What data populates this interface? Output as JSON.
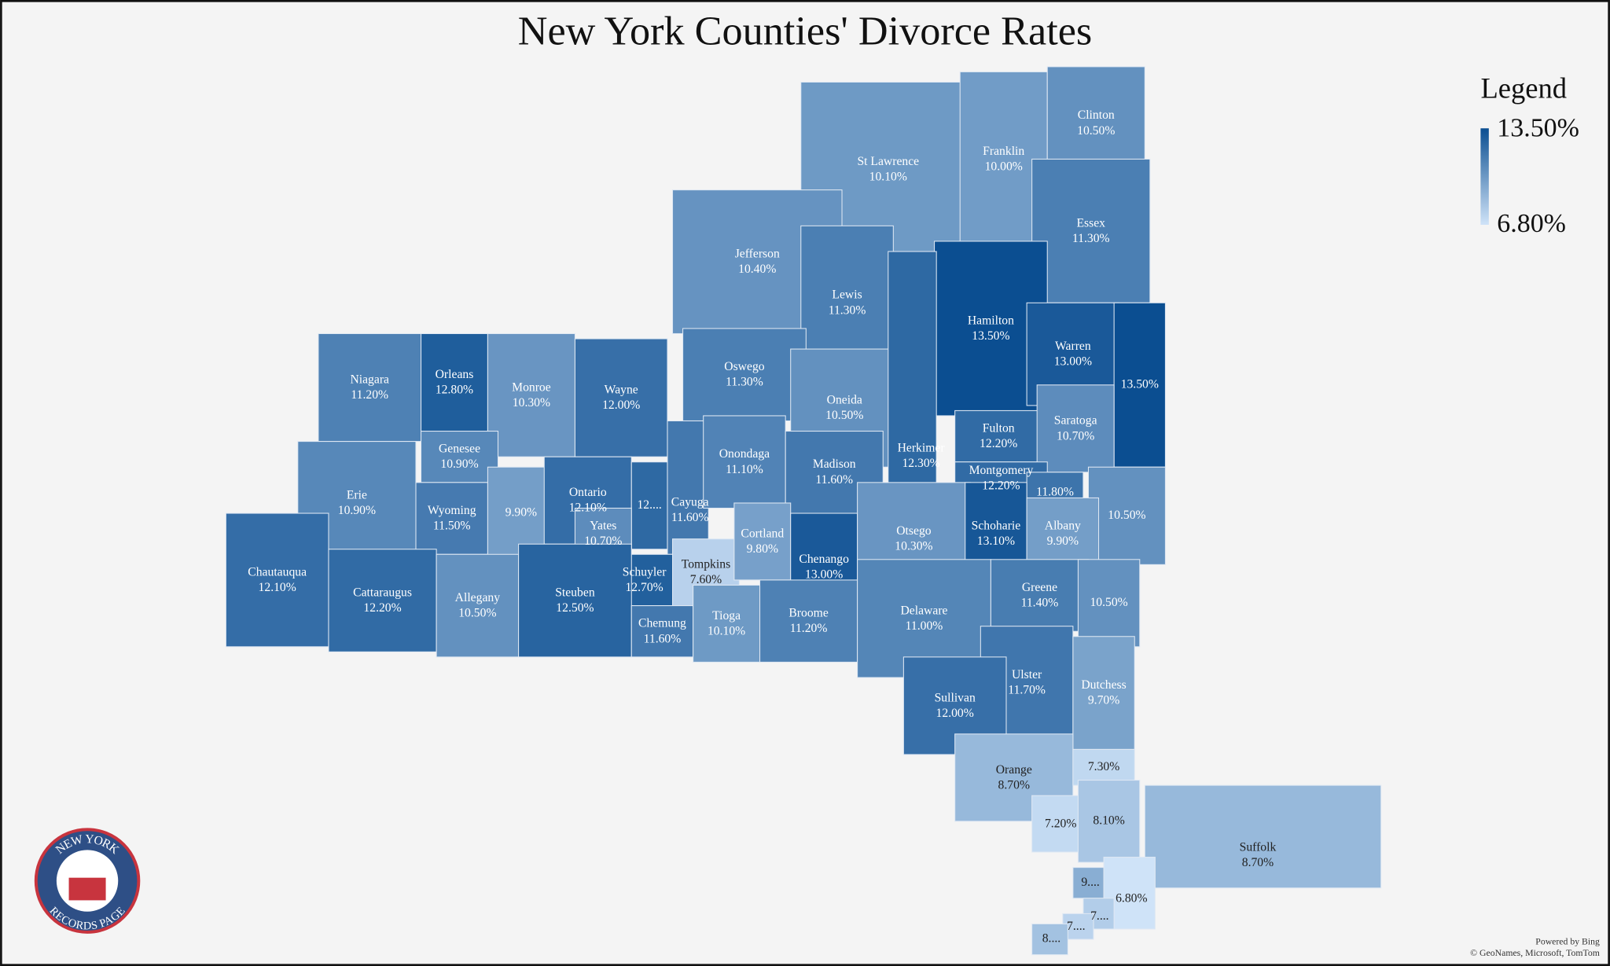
{
  "title": "New York Counties' Divorce Rates",
  "legend": {
    "title": "Legend",
    "max": {
      "value": 13.5,
      "label": "13.50%"
    },
    "min": {
      "value": 6.8,
      "label": "6.80%"
    },
    "colors": [
      "#cfe3f8",
      "#0b4e91"
    ]
  },
  "counties": [
    {
      "name": "St Lawrence",
      "value": 10.1,
      "value_label": "10.10%"
    },
    {
      "name": "Franklin",
      "value": 10.0,
      "value_label": "10.00%"
    },
    {
      "name": "Clinton",
      "value": 10.5,
      "value_label": "10.50%"
    },
    {
      "name": "Essex",
      "value": 11.3,
      "value_label": "11.30%"
    },
    {
      "name": "Jefferson",
      "value": 10.4,
      "value_label": "10.40%"
    },
    {
      "name": "Lewis",
      "value": 11.3,
      "value_label": "11.30%"
    },
    {
      "name": "Hamilton",
      "value": 13.5,
      "value_label": "13.50%"
    },
    {
      "name": "Warren",
      "value": 13.0,
      "value_label": "13.00%"
    },
    {
      "name": null,
      "value": 13.5,
      "value_label": "13.50%"
    },
    {
      "name": "Niagara",
      "value": 11.2,
      "value_label": "11.20%"
    },
    {
      "name": "Orleans",
      "value": 12.8,
      "value_label": "12.80%"
    },
    {
      "name": "Monroe",
      "value": 10.3,
      "value_label": "10.30%"
    },
    {
      "name": "Wayne",
      "value": 12.0,
      "value_label": "12.00%"
    },
    {
      "name": "Oswego",
      "value": 11.3,
      "value_label": "11.30%"
    },
    {
      "name": "Oneida",
      "value": 10.5,
      "value_label": "10.50%"
    },
    {
      "name": "Herkimer",
      "value": 12.3,
      "value_label": "12.30%"
    },
    {
      "name": "Fulton",
      "value": 12.2,
      "value_label": "12.20%"
    },
    {
      "name": "Saratoga",
      "value": 10.7,
      "value_label": "10.70%"
    },
    {
      "name": "Genesee",
      "value": 10.9,
      "value_label": "10.90%"
    },
    {
      "name": "Erie",
      "value": 10.9,
      "value_label": "10.90%"
    },
    {
      "name": "Wyoming",
      "value": 11.5,
      "value_label": "11.50%"
    },
    {
      "name": null,
      "value": 9.9,
      "value_label": "9.90%"
    },
    {
      "name": "Ontario",
      "value": 12.1,
      "value_label": "12.10%"
    },
    {
      "name": null,
      "value": 12.3,
      "value_label": "12...."
    },
    {
      "name": "Cayuga",
      "value": 11.6,
      "value_label": "11.60%"
    },
    {
      "name": "Onondaga",
      "value": 11.1,
      "value_label": "11.10%"
    },
    {
      "name": "Madison",
      "value": 11.6,
      "value_label": "11.60%"
    },
    {
      "name": "Montgomery",
      "value": 12.2,
      "value_label": "12.20%"
    },
    {
      "name": null,
      "value": 11.8,
      "value_label": "11.80%"
    },
    {
      "name": null,
      "value": 10.5,
      "value_label": "10.50%"
    },
    {
      "name": "Yates",
      "value": 10.7,
      "value_label": "10.70%"
    },
    {
      "name": "Schuyler",
      "value": 12.7,
      "value_label": "12.70%"
    },
    {
      "name": "Tompkins",
      "value": 7.6,
      "value_label": "7.60%"
    },
    {
      "name": "Cortland",
      "value": 9.8,
      "value_label": "9.80%"
    },
    {
      "name": "Chenango",
      "value": 13.0,
      "value_label": "13.00%"
    },
    {
      "name": "Otsego",
      "value": 10.3,
      "value_label": "10.30%"
    },
    {
      "name": "Schoharie",
      "value": 13.1,
      "value_label": "13.10%"
    },
    {
      "name": "Albany",
      "value": 9.9,
      "value_label": "9.90%"
    },
    {
      "name": "Chautauqua",
      "value": 12.1,
      "value_label": "12.10%"
    },
    {
      "name": "Cattaraugus",
      "value": 12.2,
      "value_label": "12.20%"
    },
    {
      "name": "Allegany",
      "value": 10.5,
      "value_label": "10.50%"
    },
    {
      "name": "Steuben",
      "value": 12.5,
      "value_label": "12.50%"
    },
    {
      "name": "Chemung",
      "value": 11.6,
      "value_label": "11.60%"
    },
    {
      "name": "Tioga",
      "value": 10.1,
      "value_label": "10.10%"
    },
    {
      "name": "Broome",
      "value": 11.2,
      "value_label": "11.20%"
    },
    {
      "name": "Delaware",
      "value": 11.0,
      "value_label": "11.00%"
    },
    {
      "name": "Greene",
      "value": 11.4,
      "value_label": "11.40%"
    },
    {
      "name": null,
      "value": 10.5,
      "value_label": "10.50%"
    },
    {
      "name": "Ulster",
      "value": 11.7,
      "value_label": "11.70%"
    },
    {
      "name": "Sullivan",
      "value": 12.0,
      "value_label": "12.00%"
    },
    {
      "name": "Dutchess",
      "value": 9.7,
      "value_label": "9.70%"
    },
    {
      "name": "Orange",
      "value": 8.7,
      "value_label": "8.70%"
    },
    {
      "name": null,
      "value": 7.3,
      "value_label": "7.30%"
    },
    {
      "name": null,
      "value": 7.2,
      "value_label": "7.20%"
    },
    {
      "name": null,
      "value": 8.1,
      "value_label": "8.10%"
    },
    {
      "name": "Suffolk",
      "value": 8.7,
      "value_label": "8.70%"
    },
    {
      "name": null,
      "value": 9.2,
      "value_label": "9...."
    },
    {
      "name": null,
      "value": 6.8,
      "value_label": "6.80%"
    },
    {
      "name": null,
      "value": 7.8,
      "value_label": "7...."
    },
    {
      "name": null,
      "value": 7.5,
      "value_label": "7...."
    },
    {
      "name": null,
      "value": 8.3,
      "value_label": "8...."
    }
  ],
  "logo": {
    "top": "NEW YORK",
    "bottom": "RECORDS PAGE"
  },
  "attribution": [
    "Powered by Bing",
    "© GeoNames, Microsoft, TomTom"
  ]
}
